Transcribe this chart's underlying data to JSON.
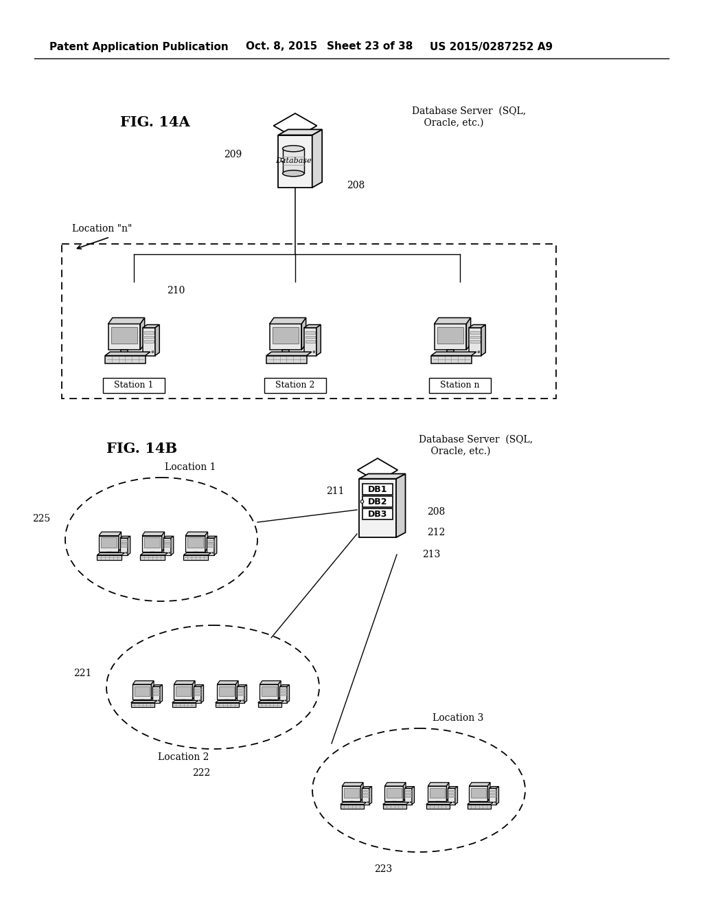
{
  "background_color": "#ffffff",
  "header_text": "Patent Application Publication",
  "header_date": "Oct. 8, 2015",
  "header_sheet": "Sheet 23 of 38",
  "header_patent": "US 2015/0287252 A9",
  "fig14a_label": "FIG. 14A",
  "fig14b_label": "FIG. 14B",
  "db_server_label": "Database Server  (SQL,\n    Oracle, etc.)",
  "db_label": "Database",
  "location_n_label": "Location \"n\"",
  "stations": [
    "Station 1",
    "Station 2",
    "Station n"
  ],
  "ref_209": "209",
  "ref_208": "208",
  "ref_210": "210",
  "ref_211": "211",
  "ref_212": "212",
  "ref_213": "213",
  "ref_208b": "208",
  "ref_221": "221",
  "ref_222": "222",
  "ref_223": "223",
  "ref_225": "225",
  "loc1_label": "Location 1",
  "loc2_label": "Location 2",
  "loc3_label": "Location 3",
  "db1_label": "DB1",
  "db2_label": "DB2",
  "db3_label": "DB3"
}
